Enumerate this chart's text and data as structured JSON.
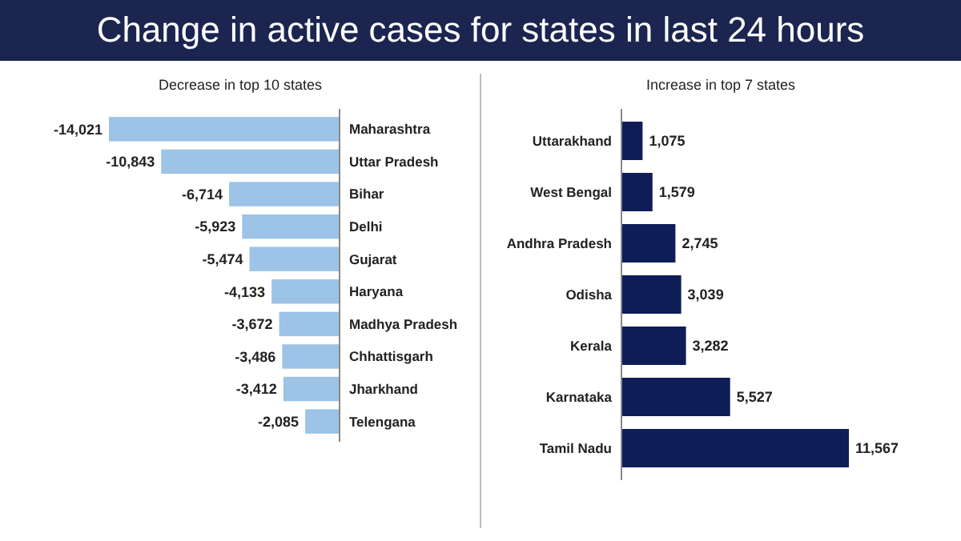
{
  "chart_data": [
    {
      "type": "bar",
      "orientation": "horizontal",
      "title": "Change in active cases for states in last 24 hours",
      "subtitle": "Decrease in top 10 states",
      "categories": [
        "Maharashtra",
        "Uttar Pradesh",
        "Bihar",
        "Delhi",
        "Gujarat",
        "Haryana",
        "Madhya Pradesh",
        "Chhattisgarh",
        "Jharkhand",
        "Telengana"
      ],
      "values": [
        -14021,
        -10843,
        -6714,
        -5923,
        -5474,
        -4133,
        -3672,
        -3486,
        -3412,
        -2085
      ],
      "value_labels": [
        "-14,021",
        "-10,843",
        "-6,714",
        "-5,923",
        "-5,474",
        "-4,133",
        "-3,672",
        "-3,486",
        "-3,412",
        "-2,085"
      ],
      "color": "#9dc3e6"
    },
    {
      "type": "bar",
      "orientation": "horizontal",
      "subtitle": "Increase in top 7 states",
      "categories": [
        "Uttarakhand",
        "West Bengal",
        "Andhra Pradesh",
        "Odisha",
        "Kerala",
        "Karnataka",
        "Tamil Nadu"
      ],
      "values": [
        1075,
        1579,
        2745,
        3039,
        3282,
        5527,
        11567
      ],
      "value_labels": [
        "1,075",
        "1,579",
        "2,745",
        "3,039",
        "3,282",
        "5,527",
        "11,567"
      ],
      "color": "#0f1d57"
    }
  ]
}
